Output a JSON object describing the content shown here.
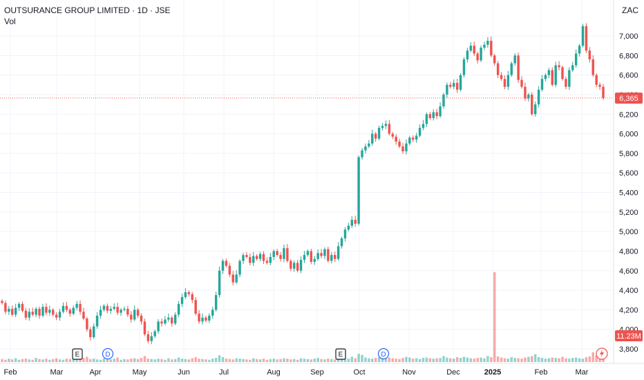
{
  "header": {
    "title": "OUTSURANCE GROUP LIMITED · 1D · JSE",
    "volume_label": "Vol",
    "currency": "ZAC"
  },
  "colors": {
    "up": "#26a69a",
    "down": "#ef5350",
    "grid": "#f0f3fa",
    "axis_text": "#131722",
    "price_line": "#ef5350",
    "volume_tag": "#ef5350"
  },
  "chart_data": {
    "type": "candlestick",
    "title": "OUTSURANCE GROUP LIMITED · 1D · JSE",
    "ylabel": "",
    "ylim": [
      3700,
      7200
    ],
    "y_ticks": [
      3800,
      4000,
      4200,
      4400,
      4600,
      4800,
      5000,
      5200,
      5400,
      5600,
      5800,
      6000,
      6200,
      6400,
      6600,
      6800,
      7000
    ],
    "y_tick_labels": [
      "3,800",
      "4,000",
      "4,200",
      "4,400",
      "4,600",
      "4,800",
      "5,000",
      "5,200",
      "5,400",
      "5,600",
      "5,800",
      "6,000",
      "6,200",
      "6,400",
      "6,600",
      "6,800",
      "7,000"
    ],
    "x_tick_labels": [
      "Feb",
      "Mar",
      "Apr",
      "May",
      "Jun",
      "Jul",
      "Aug",
      "Sep",
      "Oct",
      "Nov",
      "Dec",
      "2025",
      "Feb",
      "Mar"
    ],
    "last_price": 6365,
    "last_price_label": "6,365",
    "last_volume_label": "11.23M",
    "close_series": [
      4270,
      4180,
      4210,
      4150,
      4220,
      4260,
      4190,
      4120,
      4180,
      4150,
      4210,
      4140,
      4230,
      4170,
      4200,
      4150,
      4120,
      4180,
      4240,
      4200,
      4160,
      4220,
      4260,
      4180,
      4110,
      4000,
      3920,
      4030,
      4140,
      4200,
      4240,
      4190,
      4210,
      4230,
      4170,
      4200,
      4210,
      4150,
      4100,
      4200,
      4140,
      4080,
      3950,
      3880,
      3930,
      3980,
      4080,
      4060,
      4100,
      4120,
      4060,
      4150,
      4260,
      4330,
      4380,
      4360,
      4300,
      4160,
      4080,
      4120,
      4090,
      4140,
      4200,
      4350,
      4600,
      4700,
      4650,
      4560,
      4480,
      4560,
      4700,
      4760,
      4740,
      4680,
      4750,
      4720,
      4770,
      4700,
      4680,
      4740,
      4800,
      4760,
      4720,
      4830,
      4700,
      4620,
      4680,
      4600,
      4710,
      4760,
      4800,
      4690,
      4720,
      4780,
      4750,
      4820,
      4700,
      4760,
      4720,
      4850,
      4930,
      5020,
      5060,
      5120,
      5080,
      5760,
      5830,
      5870,
      5900,
      6000,
      5950,
      6060,
      6080,
      6100,
      6000,
      5970,
      5920,
      5870,
      5820,
      5900,
      5960,
      5940,
      5980,
      6060,
      6100,
      6200,
      6160,
      6220,
      6180,
      6280,
      6400,
      6500,
      6480,
      6520,
      6450,
      6600,
      6760,
      6850,
      6900,
      6820,
      6750,
      6880,
      6910,
      6950,
      6800,
      6720,
      6600,
      6560,
      6480,
      6600,
      6720,
      6800,
      6550,
      6480,
      6360,
      6400,
      6200,
      6300,
      6450,
      6560,
      6600,
      6650,
      6500,
      6700,
      6680,
      6560,
      6480,
      6650,
      6700,
      6820,
      6900,
      7100,
      6850,
      6760,
      6600,
      6500,
      6480,
      6365
    ],
    "volume_series": [
      0.8,
      0.6,
      0.9,
      0.7,
      1.0,
      0.6,
      0.8,
      0.9,
      0.7,
      0.6,
      1.1,
      0.8,
      0.7,
      0.9,
      0.6,
      0.8,
      1.0,
      0.7,
      0.6,
      0.9,
      0.8,
      1.2,
      0.7,
      0.9,
      1.1,
      1.4,
      0.8,
      0.9,
      0.7,
      0.6,
      1.0,
      0.8,
      0.7,
      0.9,
      1.2,
      0.6,
      0.8,
      0.7,
      0.9,
      1.0,
      0.8,
      1.1,
      1.6,
      0.9,
      0.8,
      0.7,
      0.9,
      0.8,
      0.6,
      1.0,
      0.7,
      0.8,
      1.2,
      0.9,
      0.8,
      0.7,
      1.0,
      1.3,
      0.9,
      0.8,
      0.7,
      0.6,
      0.9,
      1.1,
      1.8,
      1.3,
      0.9,
      0.8,
      0.7,
      1.0,
      0.9,
      0.8,
      0.7,
      0.6,
      1.0,
      0.8,
      0.7,
      0.9,
      0.6,
      0.8,
      0.9,
      0.7,
      0.8,
      1.0,
      0.9,
      0.7,
      0.8,
      0.6,
      1.0,
      0.9,
      0.8,
      0.7,
      0.9,
      1.1,
      0.8,
      0.7,
      0.9,
      0.8,
      0.7,
      1.0,
      1.2,
      1.1,
      0.9,
      1.4,
      1.0,
      2.2,
      1.9,
      1.2,
      1.0,
      0.9,
      1.1,
      1.3,
      1.0,
      0.9,
      1.2,
      1.0,
      0.9,
      0.8,
      1.1,
      1.4,
      1.2,
      0.9,
      1.0,
      0.8,
      1.1,
      1.2,
      1.0,
      0.9,
      1.0,
      1.1,
      1.6,
      1.2,
      1.0,
      0.9,
      1.3,
      1.1,
      1.4,
      1.2,
      1.0,
      0.9,
      1.1,
      1.2,
      1.0,
      1.6,
      1.3,
      24.0,
      1.5,
      1.2,
      1.0,
      0.9,
      1.3,
      1.1,
      1.0,
      0.9,
      1.2,
      1.4,
      1.6,
      2.1,
      1.3,
      1.1,
      0.9,
      1.0,
      1.2,
      1.1,
      1.0,
      1.4,
      1.0,
      0.9,
      1.1,
      1.2,
      1.0,
      0.9,
      1.3,
      1.5,
      2.6,
      1.8,
      1.3,
      1.2,
      1.4,
      1.1,
      1.0,
      0.9,
      11.23
    ],
    "event_markers": [
      {
        "label": "E",
        "kind": "earnings"
      },
      {
        "label": "D",
        "kind": "dividend"
      },
      {
        "label": "E",
        "kind": "earnings"
      },
      {
        "label": "D",
        "kind": "dividend"
      }
    ],
    "grid": true,
    "legend": "none"
  }
}
